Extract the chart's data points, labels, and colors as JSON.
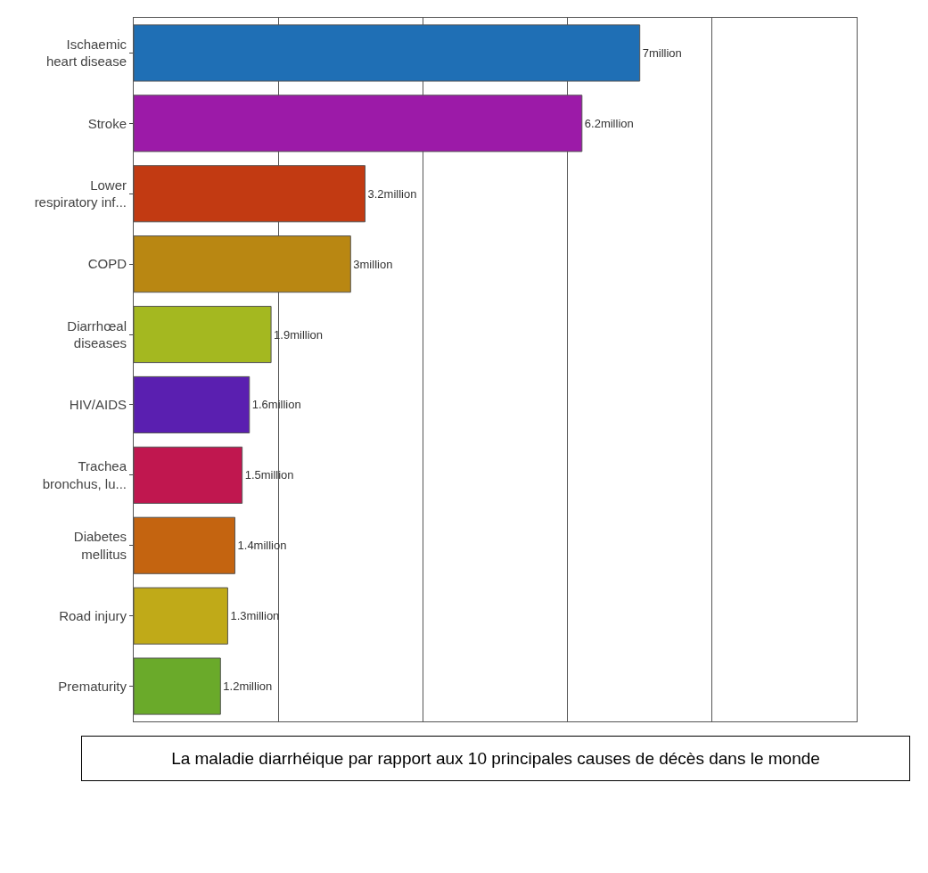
{
  "chart_data": {
    "type": "bar",
    "orientation": "horizontal",
    "categories": [
      "Ischaemic\nheart disease",
      "Stroke",
      "Lower\nrespiratory inf...",
      "COPD",
      "Diarrhœal\ndiseases",
      "HIV/AIDS",
      "Trachea\nbronchus, lu...",
      "Diabetes\nmellitus",
      "Road injury",
      "Prematurity"
    ],
    "values": [
      7,
      6.2,
      3.2,
      3,
      1.9,
      1.6,
      1.5,
      1.4,
      1.3,
      1.2
    ],
    "colors": [
      "#1f6fb5",
      "#9c1aa8",
      "#c23a12",
      "#b98712",
      "#a4b820",
      "#5a1fb0",
      "#c0174f",
      "#c46410",
      "#c0aa18",
      "#6aaa2a"
    ],
    "value_labels": [
      "7million",
      "6.2million",
      "3.2million",
      "3million",
      "1.9million",
      "1.6million",
      "1.5million",
      "1.4million",
      "1.3million",
      "1.2million"
    ],
    "xlim": [
      0,
      10
    ],
    "xticks": [
      {
        "value": 0,
        "label": null
      },
      {
        "value": 2,
        "label": null
      },
      {
        "value": 4,
        "label": null
      },
      {
        "value": 6,
        "label": null
      },
      {
        "value": 8,
        "label": null
      },
      {
        "value": 10,
        "label": null
      }
    ],
    "grid": "x",
    "tick_labels": "y",
    "annotations": [
      "La maladie diarrhéique par rapport aux 10 principales causes de décès dans le monde"
    ]
  }
}
